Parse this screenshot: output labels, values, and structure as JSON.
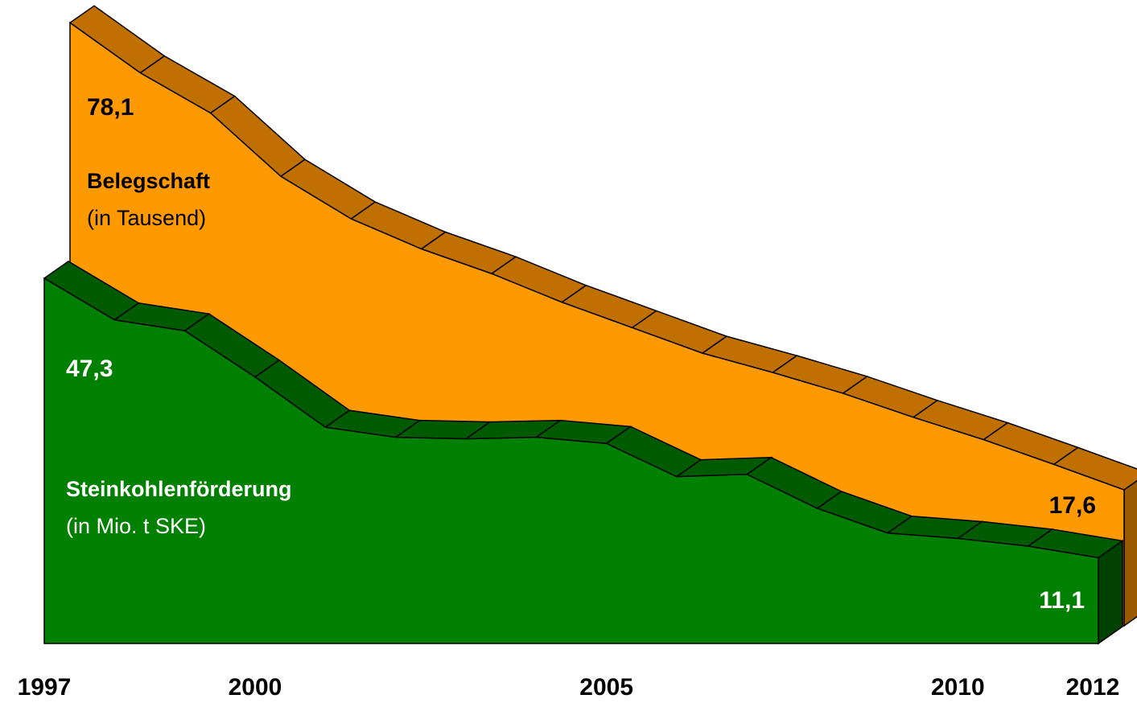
{
  "chart_data": {
    "type": "area3d",
    "x": [
      1997,
      1998,
      1999,
      2000,
      2001,
      2002,
      2003,
      2004,
      2005,
      2006,
      2007,
      2008,
      2009,
      2010,
      2011,
      2012
    ],
    "xlim": [
      1997,
      2012
    ],
    "xticks": [
      1997,
      2000,
      2005,
      2010,
      2012
    ],
    "ylim": [
      0,
      80
    ],
    "series": [
      {
        "name": "Belegschaft",
        "unit": "(in Tausend)",
        "color": "#ff9900",
        "side_color": "#c07000",
        "values": [
          78.1,
          71.6,
          66.4,
          58.2,
          52.7,
          48.8,
          45.6,
          41.9,
          38.6,
          35.3,
          32.8,
          30.1,
          27.0,
          24.1,
          20.9,
          17.6
        ],
        "value_labels": [
          "78,1",
          null,
          null,
          null,
          null,
          null,
          null,
          null,
          null,
          null,
          null,
          null,
          null,
          null,
          null,
          "17,6"
        ]
      },
      {
        "name": "Steinkohlenförderung",
        "unit": "(in Mio. t SKE)",
        "color": "#008000",
        "side_color": "#005a00",
        "values": [
          47.3,
          41.9,
          40.5,
          34.5,
          28.0,
          26.7,
          26.5,
          26.7,
          25.9,
          21.6,
          21.9,
          17.5,
          14.3,
          13.6,
          12.6,
          11.1
        ],
        "value_labels": [
          "47,3",
          null,
          null,
          null,
          null,
          null,
          null,
          null,
          null,
          null,
          null,
          null,
          null,
          null,
          null,
          "11,1"
        ]
      }
    ]
  }
}
